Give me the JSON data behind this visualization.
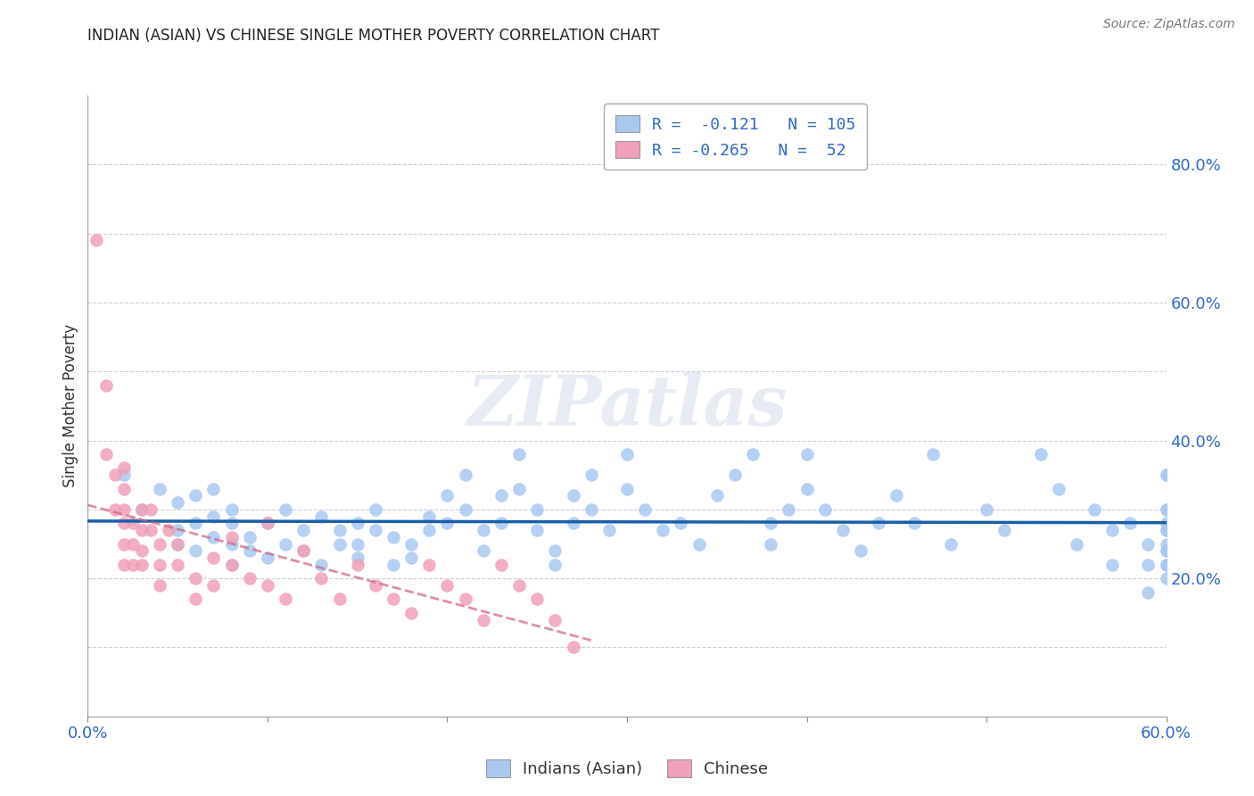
{
  "title": "INDIAN (ASIAN) VS CHINESE SINGLE MOTHER POVERTY CORRELATION CHART",
  "source": "Source: ZipAtlas.com",
  "ylabel": "Single Mother Poverty",
  "xlim": [
    0.0,
    0.6
  ],
  "ylim": [
    0.0,
    0.9
  ],
  "blue_color": "#a8c8f0",
  "pink_color": "#f0a0b8",
  "blue_line_color": "#1a5fa8",
  "pink_line_color": "#d06080",
  "grid_color": "#c8c8d8",
  "watermark": "ZIPatlas",
  "legend_R_blue": "-0.121",
  "legend_N_blue": "105",
  "legend_R_pink": "-0.265",
  "legend_N_pink": "52",
  "blue_points_x": [
    0.02,
    0.03,
    0.04,
    0.05,
    0.05,
    0.05,
    0.06,
    0.06,
    0.06,
    0.07,
    0.07,
    0.07,
    0.08,
    0.08,
    0.08,
    0.08,
    0.09,
    0.09,
    0.1,
    0.1,
    0.11,
    0.11,
    0.12,
    0.12,
    0.13,
    0.13,
    0.14,
    0.14,
    0.15,
    0.15,
    0.15,
    0.16,
    0.16,
    0.17,
    0.17,
    0.18,
    0.18,
    0.19,
    0.19,
    0.2,
    0.2,
    0.21,
    0.21,
    0.22,
    0.22,
    0.23,
    0.23,
    0.24,
    0.24,
    0.25,
    0.25,
    0.26,
    0.26,
    0.27,
    0.27,
    0.28,
    0.28,
    0.29,
    0.3,
    0.3,
    0.31,
    0.32,
    0.33,
    0.34,
    0.35,
    0.36,
    0.37,
    0.38,
    0.38,
    0.39,
    0.4,
    0.4,
    0.41,
    0.42,
    0.43,
    0.44,
    0.45,
    0.46,
    0.47,
    0.48,
    0.5,
    0.51,
    0.53,
    0.54,
    0.55,
    0.56,
    0.57,
    0.57,
    0.58,
    0.59,
    0.59,
    0.59,
    0.6,
    0.6,
    0.6,
    0.6,
    0.6,
    0.6,
    0.6,
    0.6,
    0.6,
    0.6,
    0.6,
    0.6,
    0.6
  ],
  "blue_points_y": [
    0.35,
    0.3,
    0.33,
    0.27,
    0.31,
    0.25,
    0.28,
    0.32,
    0.24,
    0.26,
    0.29,
    0.33,
    0.25,
    0.28,
    0.22,
    0.3,
    0.26,
    0.24,
    0.28,
    0.23,
    0.25,
    0.3,
    0.27,
    0.24,
    0.22,
    0.29,
    0.25,
    0.27,
    0.28,
    0.25,
    0.23,
    0.3,
    0.27,
    0.26,
    0.22,
    0.25,
    0.23,
    0.29,
    0.27,
    0.32,
    0.28,
    0.35,
    0.3,
    0.27,
    0.24,
    0.32,
    0.28,
    0.38,
    0.33,
    0.3,
    0.27,
    0.24,
    0.22,
    0.32,
    0.28,
    0.35,
    0.3,
    0.27,
    0.38,
    0.33,
    0.3,
    0.27,
    0.28,
    0.25,
    0.32,
    0.35,
    0.38,
    0.28,
    0.25,
    0.3,
    0.38,
    0.33,
    0.3,
    0.27,
    0.24,
    0.28,
    0.32,
    0.28,
    0.38,
    0.25,
    0.3,
    0.27,
    0.38,
    0.33,
    0.25,
    0.3,
    0.27,
    0.22,
    0.28,
    0.18,
    0.25,
    0.22,
    0.3,
    0.27,
    0.24,
    0.35,
    0.28,
    0.22,
    0.25,
    0.3,
    0.27,
    0.2,
    0.24,
    0.22,
    0.35
  ],
  "pink_points_x": [
    0.005,
    0.01,
    0.01,
    0.015,
    0.015,
    0.02,
    0.02,
    0.02,
    0.02,
    0.02,
    0.02,
    0.025,
    0.025,
    0.025,
    0.03,
    0.03,
    0.03,
    0.03,
    0.035,
    0.035,
    0.04,
    0.04,
    0.04,
    0.045,
    0.05,
    0.05,
    0.06,
    0.06,
    0.07,
    0.07,
    0.08,
    0.08,
    0.09,
    0.1,
    0.1,
    0.11,
    0.12,
    0.13,
    0.14,
    0.15,
    0.16,
    0.17,
    0.18,
    0.19,
    0.2,
    0.21,
    0.22,
    0.23,
    0.24,
    0.25,
    0.26,
    0.27
  ],
  "pink_points_y": [
    0.69,
    0.48,
    0.38,
    0.35,
    0.3,
    0.36,
    0.33,
    0.3,
    0.28,
    0.25,
    0.22,
    0.28,
    0.25,
    0.22,
    0.3,
    0.27,
    0.24,
    0.22,
    0.3,
    0.27,
    0.25,
    0.22,
    0.19,
    0.27,
    0.25,
    0.22,
    0.2,
    0.17,
    0.23,
    0.19,
    0.26,
    0.22,
    0.2,
    0.28,
    0.19,
    0.17,
    0.24,
    0.2,
    0.17,
    0.22,
    0.19,
    0.17,
    0.15,
    0.22,
    0.19,
    0.17,
    0.14,
    0.22,
    0.19,
    0.17,
    0.14,
    0.1
  ]
}
